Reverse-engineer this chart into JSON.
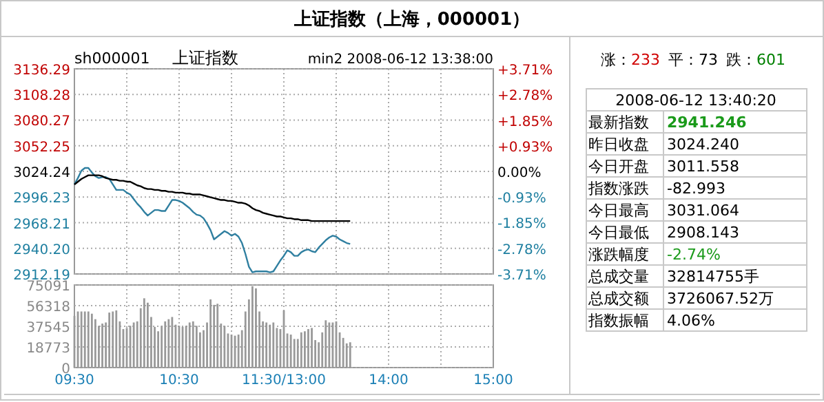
{
  "chart_data": [
    {
      "type": "line",
      "title": "上证指数（上海，000001）",
      "subtitle": "上证指数",
      "annotations": [
        "sh000001",
        "min2 2008-06-12 13:38:00"
      ],
      "categories": [
        null,
        null,
        null,
        null,
        null,
        null,
        null,
        null,
        null,
        null,
        null,
        null,
        null,
        null,
        null,
        null,
        null,
        null,
        null,
        null,
        null,
        null,
        null,
        null,
        null,
        null,
        null,
        null,
        null,
        null,
        null,
        null,
        null,
        null,
        null,
        null,
        null,
        null,
        null,
        null,
        null,
        null,
        null,
        null,
        null,
        null,
        null,
        null,
        null,
        null,
        null,
        null,
        null,
        null,
        null,
        null,
        null,
        null,
        null,
        null,
        null,
        null,
        null,
        null,
        null,
        null,
        null,
        null,
        null,
        null,
        null,
        null,
        null,
        null,
        null,
        null,
        null,
        null,
        null,
        null,
        null,
        null,
        null,
        null,
        null,
        null,
        null,
        null,
        null,
        null,
        null,
        null,
        null,
        null,
        null,
        null,
        null,
        null,
        null,
        null,
        null,
        null,
        null,
        null,
        null,
        null,
        null,
        null,
        null,
        null,
        null,
        null,
        null,
        null,
        null,
        null,
        null,
        null,
        null,
        null,
        null
      ],
      "ylim": [
        2912.19,
        3136.29
      ],
      "yticks": [
        2912.19,
        {
          "value": 2940.2,
          "label": "2940.20"
        },
        2968.21,
        2996.23,
        3024.24,
        3052.25,
        3080.27,
        3108.28,
        3136.29
      ],
      "y2lim": [
        -3.71,
        3.71
      ],
      "y2ticks": [
        {
          "value": -3.71,
          "label": "-3.71%"
        },
        {
          "value": -2.78,
          "label": "-2.78%"
        },
        {
          "value": -1.85,
          "label": "-1.85%"
        },
        {
          "value": -0.93,
          "label": "-0.93%"
        },
        {
          "value": 0,
          "label": "0.00%"
        },
        {
          "value": 0.93,
          "label": "+0.93%"
        },
        {
          "value": 1.85,
          "label": "+1.85%"
        },
        {
          "value": 2.78,
          "label": "+2.78%"
        },
        {
          "value": 3.71,
          "label": "+3.71%"
        }
      ],
      "grid": true,
      "tick_labels": "y",
      "series": [
        {
          "color": "#2f7fa0",
          "values": [
            3010,
            3017,
            3025,
            3028,
            3028,
            3023,
            3019,
            3017,
            3018,
            3018,
            3016,
            3010,
            3004,
            3004,
            3004,
            3001,
            2999,
            2994,
            2989,
            2985,
            2980,
            2976,
            2979,
            2982,
            2982,
            2981,
            2981,
            2987,
            2993,
            2993,
            2992,
            2990,
            2987,
            2984,
            2980,
            2977,
            2976,
            2973,
            2967,
            2960,
            2950,
            2953,
            2956,
            2959,
            2957,
            2954,
            2956,
            2953,
            2946,
            2934,
            2920,
            2914,
            2915,
            2915,
            2915,
            2915,
            2914,
            2915,
            2921,
            2927,
            2932,
            2938,
            2936,
            2932,
            2932,
            2936,
            2938,
            2939,
            2937,
            2936,
            2941,
            2945,
            2949,
            2952,
            2954,
            2953,
            2950,
            2948,
            2946,
            2945,
            null,
            null,
            null,
            null,
            null,
            null,
            null,
            null,
            null,
            null,
            null,
            null,
            null,
            null,
            null,
            null,
            null,
            null,
            null,
            null,
            null,
            null,
            null,
            null,
            null,
            null,
            null,
            null,
            null,
            null,
            null,
            null,
            null,
            null,
            null,
            null,
            null,
            null,
            null,
            null,
            null
          ]
        },
        {
          "color": "#000000",
          "values": [
            3010,
            3013,
            3016,
            3018,
            3020,
            3020,
            3020,
            3020,
            3019,
            3017,
            3016,
            3015,
            3015,
            3014,
            3014,
            3013,
            3013,
            3011,
            3009,
            3008,
            3006,
            3005,
            3005,
            3004,
            3004,
            3003,
            3003,
            3002,
            3002,
            3001,
            3001,
            3001,
            3000,
            3000,
            2999,
            2999,
            2999,
            2998,
            2997,
            2996,
            2995,
            2994,
            2993,
            2993,
            2992,
            2992,
            2991,
            2990,
            2990,
            2989,
            2987,
            2984,
            2982,
            2981,
            2979,
            2978,
            2977,
            2976,
            2975,
            2975,
            2974,
            2973,
            2973,
            2972,
            2972,
            2971,
            2971,
            2971,
            2970,
            2970,
            2970,
            2970,
            2970,
            2970,
            2970,
            2970,
            2970,
            2970,
            2970,
            2970,
            null,
            null,
            null,
            null,
            null,
            null,
            null,
            null,
            null,
            null,
            null,
            null,
            null,
            null,
            null,
            null,
            null,
            null,
            null,
            null,
            null,
            null,
            null,
            null,
            null,
            null,
            null,
            null,
            null,
            null,
            null,
            null,
            null,
            null,
            null,
            null,
            null,
            null,
            null,
            null,
            null
          ]
        }
      ]
    },
    {
      "type": "bar",
      "color": "#999999",
      "categories": [
        "09:30",
        null,
        null,
        null,
        null,
        null,
        null,
        null,
        null,
        null,
        null,
        null,
        null,
        null,
        null,
        null,
        null,
        null,
        null,
        null,
        null,
        null,
        null,
        null,
        null,
        null,
        null,
        null,
        null,
        null,
        "10:30",
        null,
        null,
        null,
        null,
        null,
        null,
        null,
        null,
        null,
        null,
        null,
        null,
        null,
        null,
        null,
        null,
        null,
        null,
        null,
        null,
        null,
        null,
        null,
        null,
        null,
        null,
        null,
        null,
        null,
        "11:30/13:00",
        null,
        null,
        null,
        null,
        null,
        null,
        null,
        null,
        null,
        null,
        null,
        null,
        null,
        null,
        null,
        null,
        null,
        null,
        null,
        null,
        null,
        null,
        null,
        null,
        null,
        null,
        null,
        null,
        null,
        "14:00",
        null,
        null,
        null,
        null,
        null,
        null,
        null,
        null,
        null,
        null,
        null,
        null,
        null,
        null,
        null,
        null,
        null,
        null,
        null,
        null,
        null,
        null,
        null,
        null,
        null,
        null,
        null,
        null,
        null,
        "15:00"
      ],
      "values": [
        47000,
        51000,
        51000,
        51000,
        51000,
        49000,
        44000,
        38000,
        40000,
        41000,
        50000,
        51000,
        52000,
        42000,
        35000,
        36000,
        38000,
        41000,
        42000,
        54000,
        63000,
        59000,
        46000,
        37000,
        33000,
        38000,
        42000,
        44000,
        46000,
        39000,
        38000,
        37000,
        38000,
        41000,
        42000,
        38000,
        32000,
        34000,
        41000,
        62000,
        57000,
        58000,
        40000,
        38000,
        31000,
        30000,
        29000,
        30000,
        34000,
        51000,
        62000,
        74000,
        72000,
        51000,
        42000,
        41000,
        39000,
        41000,
        36000,
        35000,
        52000,
        31000,
        30000,
        26000,
        26000,
        32000,
        33000,
        35000,
        36000,
        25000,
        23000,
        32000,
        43000,
        41000,
        41000,
        42000,
        32000,
        27000,
        22000,
        23000,
        null,
        null,
        null,
        null,
        null,
        null,
        null,
        null,
        null,
        null,
        null,
        null,
        null,
        null,
        null,
        null,
        null,
        null,
        null,
        null,
        null,
        null,
        null,
        null,
        null,
        null,
        null,
        null,
        null,
        null,
        null,
        null,
        null,
        null,
        null,
        null,
        null,
        null,
        null,
        null,
        null
      ],
      "ylim": [
        0,
        75091
      ],
      "yticks": [
        0,
        18773,
        37545,
        56318,
        75091
      ],
      "grid": true
    },
    {
      "type": "other",
      "title": "2008-06-12 13:40:20",
      "annotations": [
        "涨：233",
        "平：73",
        "跌：601"
      ],
      "categories": [
        "最新指数",
        "昨日收盘",
        "今日开盘",
        "指数涨跌",
        "今日最高",
        "今日最低",
        "涨跌幅度",
        "总成交量",
        "总成交额",
        "指数振幅"
      ],
      "value_labels": [
        "2941.246",
        "3024.240",
        "3011.558",
        "-82.993",
        "3031.064",
        "2908.143",
        "-2.74%",
        "32814755手",
        "3726067.52万",
        "4.06%"
      ],
      "colors": [
        "#1a9a1a",
        "#000000",
        "#000000",
        "#000000",
        "#000000",
        "#000000",
        "#1a9a1a",
        "#000000",
        "#000000",
        "#000000"
      ]
    }
  ]
}
